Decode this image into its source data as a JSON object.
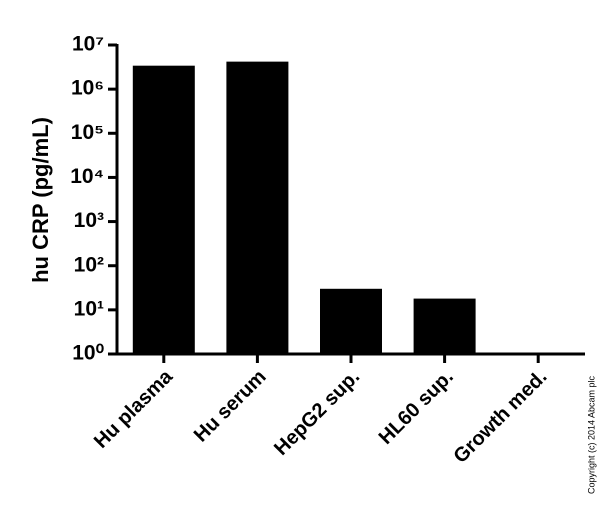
{
  "chart_data": {
    "type": "bar",
    "y_label": "hu CRP (pg/mL)",
    "categories": [
      "Hu plasma",
      "Hu serum",
      "HepG2 sup.",
      "HL60 sup.",
      "Growth med."
    ],
    "values": [
      3400000,
      4200000,
      30,
      18,
      null
    ],
    "color": "#000000",
    "ylog": true,
    "ylim": [
      1,
      10000000
    ],
    "yticks": [
      {
        "value": 1,
        "label": "10⁰"
      },
      {
        "value": 10,
        "label": "10¹"
      },
      {
        "value": 100,
        "label": "10²"
      },
      {
        "value": 1000,
        "label": "10³"
      },
      {
        "value": 10000,
        "label": "10⁴"
      },
      {
        "value": 100000,
        "label": "10⁵"
      },
      {
        "value": 1000000,
        "label": "10⁶"
      },
      {
        "value": 10000000,
        "label": "10⁷"
      }
    ],
    "grid": false,
    "annotation": "Copyright (c) 2014 Abcam plc"
  }
}
